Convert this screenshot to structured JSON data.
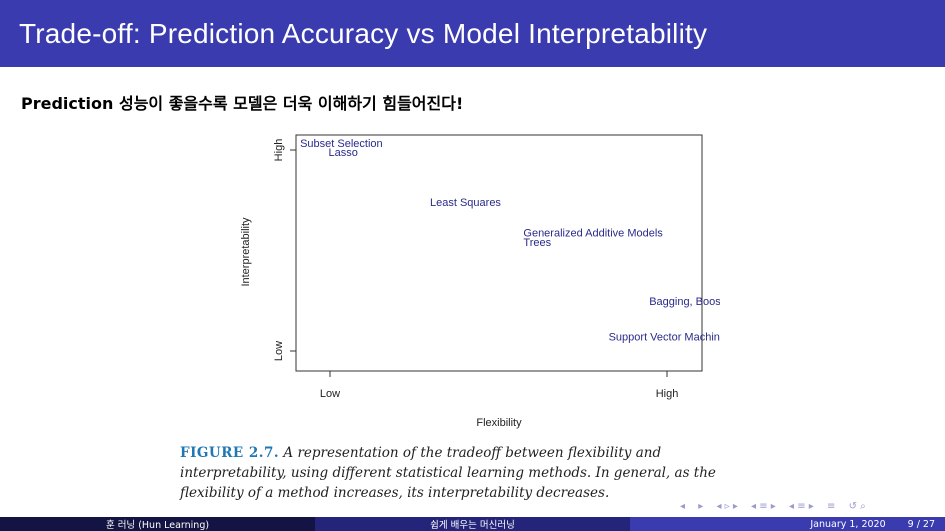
{
  "slide": {
    "title": "Trade-off: Prediction Accuracy vs Model Interpretability",
    "subtitle": "Prediction 성능이 좋을수록 모델은 더욱 이해하기 힘들어진다!"
  },
  "figure": {
    "y_axis_label": "Interpretability",
    "x_axis_label": "Flexibility",
    "y_ticks": [
      "High",
      "Low"
    ],
    "x_ticks": [
      "Low",
      "High"
    ],
    "methods": [
      {
        "label": "Subset Selection",
        "flexibility": 0.01,
        "interpretability": 0.95
      },
      {
        "label": "Lasso",
        "flexibility": 0.08,
        "interpretability": 0.91
      },
      {
        "label": "Least Squares",
        "flexibility": 0.33,
        "interpretability": 0.7
      },
      {
        "label": "Generalized Additive Models",
        "flexibility": 0.56,
        "interpretability": 0.57
      },
      {
        "label": "Trees",
        "flexibility": 0.56,
        "interpretability": 0.53
      },
      {
        "label": "Bagging, Boosting",
        "flexibility": 0.87,
        "interpretability": 0.28
      },
      {
        "label": "Support Vector Machines",
        "flexibility": 0.77,
        "interpretability": 0.13
      }
    ],
    "label_color": "#2a2a8a",
    "caption_label": "FIGURE 2.7.",
    "caption_text": "A representation of the tradeoff between flexibility and interpretability, using different statistical learning methods. In general, as the flexibility of a method increases, its interpretability decreases."
  },
  "nav": {
    "symbols": [
      "◂",
      "▸",
      "◂ ▹ ▸",
      "◂ ≡ ▸",
      "◂ ≡ ▸",
      "≡",
      "↺ ⌕"
    ]
  },
  "footer": {
    "author": "훈 러닝 (Hun Learning)",
    "course": "쉽게 배우는 머신러닝",
    "date": "January 1, 2020",
    "page": "9 / 27"
  },
  "colors": {
    "header_bg": "#3b3bb0",
    "footer_dark": "#141444",
    "footer_mid": "#24247a",
    "caption_label": "#1f77b4"
  }
}
